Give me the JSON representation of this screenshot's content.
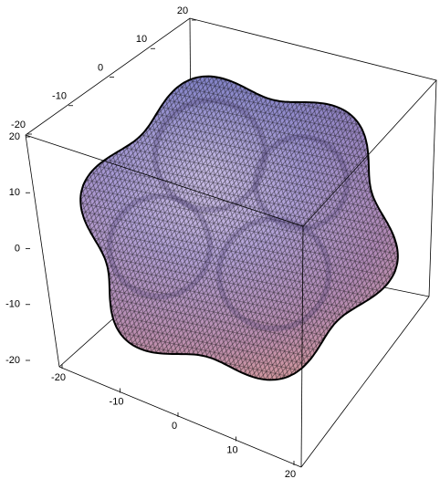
{
  "chart_data": {
    "type": "surface3d",
    "xlim": [
      -20,
      20
    ],
    "xticks": [
      -20,
      -10,
      0,
      10,
      20
    ],
    "ylim": [
      -20,
      20
    ],
    "yticks": [
      -20,
      -10,
      0,
      10,
      20
    ],
    "zlim": [
      -20,
      20
    ],
    "zticks": [
      -20,
      -10,
      0,
      10,
      20
    ]
  }
}
